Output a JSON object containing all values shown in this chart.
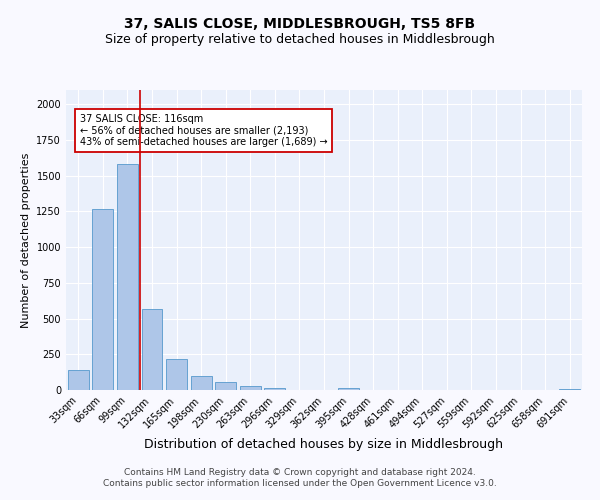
{
  "title": "37, SALIS CLOSE, MIDDLESBROUGH, TS5 8FB",
  "subtitle": "Size of property relative to detached houses in Middlesbrough",
  "xlabel": "Distribution of detached houses by size in Middlesbrough",
  "ylabel": "Number of detached properties",
  "categories": [
    "33sqm",
    "66sqm",
    "99sqm",
    "132sqm",
    "165sqm",
    "198sqm",
    "230sqm",
    "263sqm",
    "296sqm",
    "329sqm",
    "362sqm",
    "395sqm",
    "428sqm",
    "461sqm",
    "494sqm",
    "527sqm",
    "559sqm",
    "592sqm",
    "625sqm",
    "658sqm",
    "691sqm"
  ],
  "values": [
    140,
    1270,
    1580,
    570,
    220,
    100,
    55,
    25,
    15,
    0,
    0,
    15,
    0,
    0,
    0,
    0,
    0,
    0,
    0,
    0,
    5
  ],
  "bar_color": "#aec6e8",
  "bar_edge_color": "#5599cc",
  "bg_color": "#eaf0fb",
  "grid_color": "#ffffff",
  "vline_x": 2.5,
  "vline_color": "#cc0000",
  "annotation_text": "37 SALIS CLOSE: 116sqm\n← 56% of detached houses are smaller (2,193)\n43% of semi-detached houses are larger (1,689) →",
  "annotation_box_color": "#ffffff",
  "annotation_box_edge": "#cc0000",
  "footer": "Contains HM Land Registry data © Crown copyright and database right 2024.\nContains public sector information licensed under the Open Government Licence v3.0.",
  "ylim": [
    0,
    2100
  ],
  "title_fontsize": 10,
  "subtitle_fontsize": 9,
  "xlabel_fontsize": 9,
  "ylabel_fontsize": 8,
  "tick_fontsize": 7,
  "footer_fontsize": 6.5,
  "fig_bg_color": "#f9f9ff"
}
